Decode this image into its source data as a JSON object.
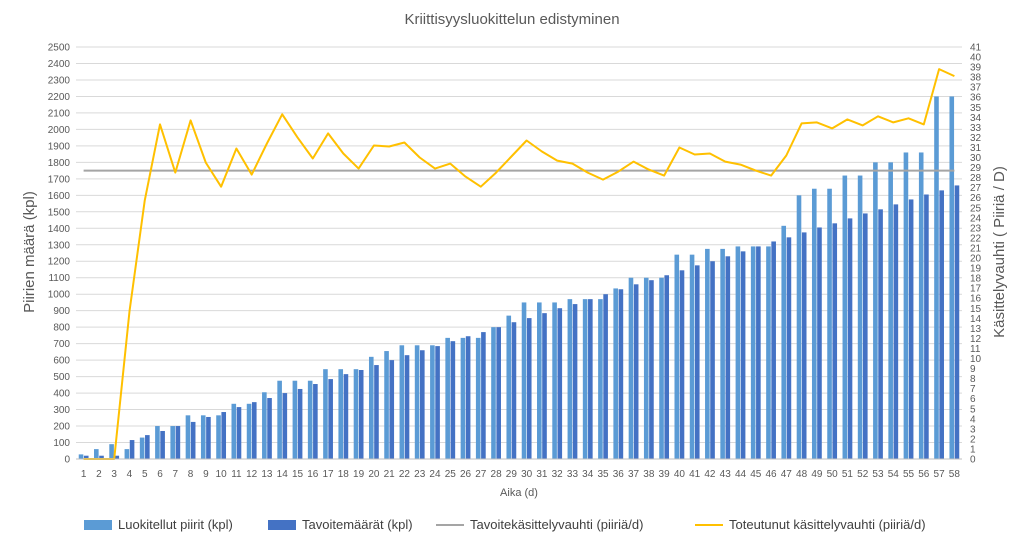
{
  "chart_data": {
    "type": "bar",
    "title": "Kriittisyysluokittelun edistyminen",
    "xlabel": "Aika (d)",
    "ylabel": "Piirien määrä (kpl)",
    "y2label": "Käsittelyvauhti ( Piiriä / D)",
    "ylim": [
      0,
      2500
    ],
    "ytick_step": 100,
    "y2lim": [
      0,
      41
    ],
    "y2tick_step": 1,
    "grid": true,
    "legend_position": "bottom",
    "categories": [
      "1",
      "2",
      "3",
      "4",
      "5",
      "6",
      "7",
      "8",
      "9",
      "10",
      "11",
      "12",
      "13",
      "14",
      "15",
      "16",
      "17",
      "18",
      "19",
      "20",
      "21",
      "22",
      "23",
      "24",
      "25",
      "26",
      "27",
      "28",
      "29",
      "30",
      "31",
      "32",
      "33",
      "34",
      "35",
      "36",
      "37",
      "38",
      "39",
      "40",
      "41",
      "42",
      "43",
      "44",
      "45",
      "46",
      "47",
      "48",
      "49",
      "50",
      "51",
      "52",
      "53",
      "54",
      "55",
      "56",
      "57",
      "58"
    ],
    "series": [
      {
        "name": "Luokitellut piirit (kpl)",
        "kind": "bar",
        "axis": "left",
        "color": "#5b9bd5",
        "values": [
          28,
          60,
          90,
          60,
          130,
          200,
          200,
          265,
          265,
          265,
          335,
          335,
          405,
          475,
          475,
          475,
          545,
          545,
          545,
          620,
          655,
          690,
          690,
          690,
          735,
          735,
          735,
          800,
          870,
          950,
          950,
          950,
          970,
          970,
          970,
          1035,
          1100,
          1100,
          1100,
          1240,
          1240,
          1275,
          1275,
          1290,
          1290,
          1290,
          1415,
          1600,
          1640,
          1640,
          1720,
          1720,
          1800,
          1800,
          1860,
          1860,
          2200,
          2200
        ]
      },
      {
        "name": "Tavoitemäärät (kpl)",
        "kind": "bar",
        "axis": "left",
        "color": "#4472c4",
        "values": [
          20,
          20,
          20,
          115,
          145,
          170,
          200,
          225,
          255,
          285,
          315,
          345,
          370,
          400,
          425,
          455,
          485,
          515,
          540,
          570,
          600,
          630,
          660,
          685,
          715,
          745,
          770,
          800,
          830,
          855,
          885,
          915,
          940,
          970,
          1000,
          1030,
          1060,
          1085,
          1115,
          1145,
          1175,
          1200,
          1230,
          1260,
          1290,
          1320,
          1345,
          1375,
          1405,
          1430,
          1460,
          1490,
          1515,
          1545,
          1575,
          1605,
          1630,
          1660
        ]
      },
      {
        "name": "Tavoitekäsittelyvauhti (piiriä/d)",
        "kind": "line",
        "axis": "right",
        "color": "#a5a5a5",
        "values": [
          28.7,
          28.7,
          28.7,
          28.7,
          28.7,
          28.7,
          28.7,
          28.7,
          28.7,
          28.7,
          28.7,
          28.7,
          28.7,
          28.7,
          28.7,
          28.7,
          28.7,
          28.7,
          28.7,
          28.7,
          28.7,
          28.7,
          28.7,
          28.7,
          28.7,
          28.7,
          28.7,
          28.7,
          28.7,
          28.7,
          28.7,
          28.7,
          28.7,
          28.7,
          28.7,
          28.7,
          28.7,
          28.7,
          28.7,
          28.7,
          28.7,
          28.7,
          28.7,
          28.7,
          28.7,
          28.7,
          28.7,
          28.7,
          28.7,
          28.7,
          28.7,
          28.7,
          28.7,
          28.7,
          28.7,
          28.7,
          28.7,
          28.7
        ]
      },
      {
        "name": "Toteutunut käsittelyvauhti (piiriä/d)",
        "kind": "line",
        "axis": "right",
        "color": "#ffc000",
        "values": [
          0,
          0,
          0,
          14.7,
          25.7,
          33.3,
          28.5,
          33.7,
          29.5,
          27.1,
          30.9,
          28.3,
          31.4,
          34.3,
          32,
          29.9,
          32.4,
          30.4,
          28.9,
          31.2,
          31.1,
          31.5,
          30,
          28.9,
          29.4,
          28.1,
          27.1,
          28.5,
          30.1,
          31.7,
          30.6,
          29.7,
          29.4,
          28.5,
          27.8,
          28.6,
          29.6,
          28.8,
          28.2,
          31,
          30.3,
          30.4,
          29.6,
          29.3,
          28.7,
          28.2,
          30.2,
          33.4,
          33.5,
          32.9,
          33.8,
          33.2,
          34.1,
          33.5,
          33.9,
          33.3,
          38.8,
          38.1
        ]
      }
    ]
  }
}
